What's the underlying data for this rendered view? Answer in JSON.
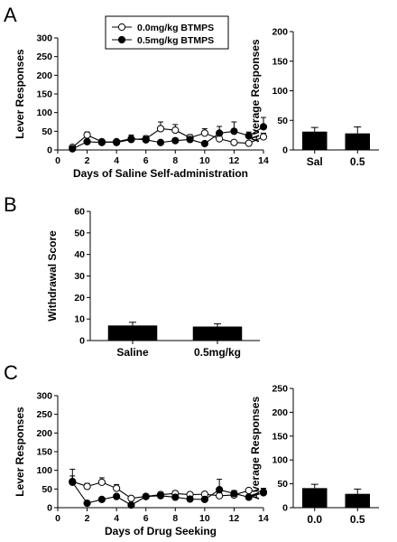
{
  "panel_letters": [
    "A",
    "B",
    "C"
  ],
  "chart_data": [
    {
      "id": "A-line",
      "type": "line",
      "panel": "A",
      "xlabel": "Days of Saline Self-administration",
      "ylabel": "Lever Responses",
      "xlim": [
        0,
        14
      ],
      "ylim": [
        0,
        300
      ],
      "xticks": [
        0,
        2,
        4,
        6,
        8,
        10,
        12,
        14
      ],
      "yticks": [
        0,
        50,
        100,
        150,
        200,
        250,
        300
      ],
      "legend_position": "top-center",
      "x": [
        1,
        2,
        3,
        4,
        5,
        6,
        7,
        8,
        9,
        10,
        11,
        12,
        13,
        14
      ],
      "series": [
        {
          "name": "0.0mg/kg BTMPS",
          "marker": "open-circle",
          "values": [
            7,
            40,
            22,
            20,
            28,
            30,
            57,
            53,
            33,
            45,
            30,
            20,
            18,
            35
          ],
          "errors": [
            3,
            8,
            4,
            4,
            6,
            8,
            18,
            15,
            8,
            12,
            10,
            6,
            5,
            10
          ]
        },
        {
          "name": "0.5mg/kg BTMPS",
          "marker": "filled-circle",
          "values": [
            3,
            22,
            20,
            22,
            30,
            27,
            20,
            25,
            28,
            17,
            45,
            50,
            38,
            62
          ],
          "errors": [
            2,
            5,
            4,
            4,
            10,
            6,
            4,
            6,
            7,
            4,
            18,
            25,
            10,
            25
          ]
        }
      ]
    },
    {
      "id": "A-bar",
      "type": "bar",
      "panel": "A",
      "ylabel": "Average Responses",
      "categories": [
        "Sal",
        "0.5"
      ],
      "values": [
        31,
        28
      ],
      "errors": [
        7,
        11
      ],
      "ylim": [
        0,
        200
      ],
      "yticks": [
        0,
        50,
        100,
        150,
        200
      ]
    },
    {
      "id": "B-bar",
      "type": "bar",
      "panel": "B",
      "ylabel": "Withdrawal Score",
      "categories": [
        "Saline",
        "0.5mg/kg"
      ],
      "values": [
        7,
        6.5
      ],
      "errors": [
        1.5,
        1.3
      ],
      "ylim": [
        0,
        60
      ],
      "yticks": [
        0,
        10,
        20,
        30,
        40,
        50,
        60
      ]
    },
    {
      "id": "C-line",
      "type": "line",
      "panel": "C",
      "xlabel": "Days of Drug Seeking",
      "ylabel": "Lever Responses",
      "xlim": [
        0,
        14
      ],
      "ylim": [
        0,
        300
      ],
      "xticks": [
        0,
        2,
        4,
        6,
        8,
        10,
        12,
        14
      ],
      "yticks": [
        0,
        50,
        100,
        150,
        200,
        250,
        300
      ],
      "x": [
        1,
        2,
        3,
        4,
        5,
        6,
        7,
        8,
        9,
        10,
        11,
        12,
        13,
        14
      ],
      "series": [
        {
          "name": "0.0mg/kg BTMPS",
          "marker": "open-circle",
          "values": [
            70,
            57,
            68,
            52,
            25,
            30,
            35,
            38,
            35,
            36,
            32,
            34,
            46,
            42
          ],
          "errors": [
            15,
            8,
            12,
            10,
            5,
            5,
            6,
            6,
            5,
            6,
            8,
            6,
            6,
            6
          ]
        },
        {
          "name": "0.5mg/kg BTMPS",
          "marker": "filled-circle",
          "values": [
            68,
            12,
            22,
            30,
            7,
            30,
            32,
            28,
            23,
            22,
            48,
            38,
            28,
            40
          ],
          "errors": [
            35,
            4,
            5,
            6,
            3,
            6,
            6,
            6,
            5,
            5,
            28,
            8,
            6,
            12
          ]
        }
      ]
    },
    {
      "id": "C-bar",
      "type": "bar",
      "panel": "C",
      "ylabel": "Average Responses",
      "categories": [
        "0.0",
        "0.5"
      ],
      "values": [
        41,
        29
      ],
      "errors": [
        8,
        10
      ],
      "ylim": [
        0,
        250
      ],
      "yticks": [
        0,
        50,
        100,
        150,
        200,
        250
      ]
    }
  ]
}
